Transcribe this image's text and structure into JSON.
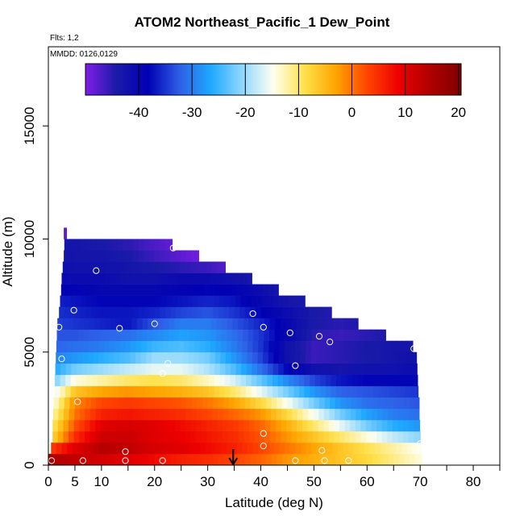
{
  "chart_data": {
    "type": "heatmap",
    "title": "ATOM2 Northeast_Pacific_1 Dew_Point",
    "flights_label": "Flts: 1,2",
    "dates_label": "MMDD: 0126,0129",
    "xlabel": "Latitude (deg N)",
    "ylabel": "Altitude (m)",
    "xlim": [
      0,
      85
    ],
    "ylim": [
      0,
      18500
    ],
    "x_ticks": [
      0,
      5,
      10,
      20,
      30,
      40,
      50,
      60,
      70,
      80
    ],
    "y_ticks": [
      0,
      5000,
      10000,
      15000
    ],
    "grid": false,
    "colorbar": {
      "position": "top",
      "range": [
        -50,
        20.5
      ],
      "ticks": [
        -40,
        -30,
        -20,
        -10,
        0,
        10,
        20
      ],
      "colors": [
        "#7e1ee6",
        "#1a1aa8",
        "#0000b4",
        "#2e5ee6",
        "#1ea8ff",
        "#8fd8ff",
        "#fffff0",
        "#ffe14a",
        "#ffa500",
        "#ff4500",
        "#ee0000",
        "#b00000",
        "#800000"
      ]
    },
    "arrow_latitude": 34.8,
    "altitude_bins": [
      {
        "z0": 0,
        "z1": 500,
        "lat_min": 0,
        "lat_max": 70.3,
        "values": [
          [
            0,
            15
          ],
          [
            5,
            13
          ],
          [
            10,
            11
          ],
          [
            15,
            10
          ],
          [
            20,
            8
          ],
          [
            25,
            6
          ],
          [
            30,
            5
          ],
          [
            35,
            3
          ],
          [
            40,
            1
          ],
          [
            45,
            -2
          ],
          [
            50,
            -4
          ],
          [
            55,
            -6
          ],
          [
            60,
            -8
          ],
          [
            65,
            -11
          ],
          [
            70,
            -14
          ]
        ]
      },
      {
        "z0": 500,
        "z1": 1000,
        "lat_min": 0.5,
        "lat_max": 70.2,
        "values": [
          [
            0,
            3
          ],
          [
            5,
            10
          ],
          [
            10,
            14
          ],
          [
            15,
            13
          ],
          [
            20,
            11
          ],
          [
            25,
            10
          ],
          [
            30,
            8
          ],
          [
            35,
            6
          ],
          [
            40,
            3
          ],
          [
            45,
            0
          ],
          [
            50,
            -3
          ],
          [
            55,
            -6
          ],
          [
            60,
            -9
          ],
          [
            65,
            -12
          ],
          [
            70,
            -15
          ]
        ]
      },
      {
        "z0": 1000,
        "z1": 1500,
        "lat_min": 0.8,
        "lat_max": 70.0,
        "values": [
          [
            0,
            -10
          ],
          [
            5,
            5
          ],
          [
            10,
            12
          ],
          [
            15,
            12
          ],
          [
            20,
            10
          ],
          [
            25,
            9
          ],
          [
            30,
            7
          ],
          [
            35,
            5
          ],
          [
            40,
            2
          ],
          [
            45,
            -2
          ],
          [
            50,
            -6
          ],
          [
            55,
            -10
          ],
          [
            60,
            -14
          ],
          [
            65,
            -18
          ],
          [
            70,
            -21
          ]
        ]
      },
      {
        "z0": 1500,
        "z1": 2000,
        "lat_min": 0.8,
        "lat_max": 69.9,
        "values": [
          [
            0,
            -12
          ],
          [
            5,
            2
          ],
          [
            10,
            10
          ],
          [
            15,
            11
          ],
          [
            20,
            10
          ],
          [
            25,
            8
          ],
          [
            30,
            6
          ],
          [
            35,
            4
          ],
          [
            40,
            1
          ],
          [
            45,
            -4
          ],
          [
            50,
            -10
          ],
          [
            55,
            -16
          ],
          [
            60,
            -22
          ],
          [
            65,
            -26
          ],
          [
            70,
            -28
          ]
        ]
      },
      {
        "z0": 2000,
        "z1": 2500,
        "lat_min": 0.9,
        "lat_max": 69.8,
        "values": [
          [
            0,
            -15
          ],
          [
            5,
            0
          ],
          [
            10,
            6
          ],
          [
            15,
            7
          ],
          [
            20,
            6
          ],
          [
            25,
            5
          ],
          [
            30,
            3
          ],
          [
            35,
            1
          ],
          [
            40,
            -2
          ],
          [
            45,
            -8
          ],
          [
            50,
            -15
          ],
          [
            55,
            -22
          ],
          [
            60,
            -27
          ],
          [
            65,
            -30
          ],
          [
            70,
            -31
          ]
        ]
      },
      {
        "z0": 2500,
        "z1": 3000,
        "lat_min": 1.0,
        "lat_max": 69.8,
        "values": [
          [
            0,
            -18
          ],
          [
            5,
            -1
          ],
          [
            10,
            3
          ],
          [
            15,
            4
          ],
          [
            20,
            3
          ],
          [
            25,
            2
          ],
          [
            30,
            0
          ],
          [
            35,
            -3
          ],
          [
            40,
            -8
          ],
          [
            45,
            -15
          ],
          [
            50,
            -22
          ],
          [
            55,
            -28
          ],
          [
            60,
            -31
          ],
          [
            65,
            -32
          ],
          [
            70,
            -33
          ]
        ]
      },
      {
        "z0": 3000,
        "z1": 3500,
        "lat_min": 1.2,
        "lat_max": 69.6,
        "values": [
          [
            0,
            -20
          ],
          [
            5,
            -6
          ],
          [
            10,
            -3
          ],
          [
            15,
            -2
          ],
          [
            20,
            -3
          ],
          [
            25,
            -4
          ],
          [
            30,
            -6
          ],
          [
            35,
            -10
          ],
          [
            40,
            -16
          ],
          [
            45,
            -22
          ],
          [
            50,
            -28
          ],
          [
            55,
            -32
          ],
          [
            60,
            -33
          ],
          [
            65,
            -34
          ],
          [
            70,
            -35
          ]
        ]
      },
      {
        "z0": 3500,
        "z1": 4000,
        "lat_min": 1.2,
        "lat_max": 69.5,
        "values": [
          [
            0,
            -24
          ],
          [
            5,
            -14
          ],
          [
            10,
            -12
          ],
          [
            15,
            -10
          ],
          [
            20,
            -9
          ],
          [
            25,
            -10
          ],
          [
            30,
            -13
          ],
          [
            35,
            -17
          ],
          [
            40,
            -23
          ],
          [
            45,
            -29
          ],
          [
            50,
            -34
          ],
          [
            55,
            -37
          ],
          [
            60,
            -38
          ],
          [
            65,
            -38
          ],
          [
            70,
            -38
          ]
        ]
      },
      {
        "z0": 4000,
        "z1": 4500,
        "lat_min": 1.3,
        "lat_max": 69.4,
        "values": [
          [
            0,
            -28
          ],
          [
            5,
            -22
          ],
          [
            10,
            -20
          ],
          [
            15,
            -18
          ],
          [
            20,
            -16
          ],
          [
            25,
            -16
          ],
          [
            30,
            -19
          ],
          [
            35,
            -24
          ],
          [
            40,
            -31
          ],
          [
            45,
            -38
          ],
          [
            50,
            -42
          ],
          [
            55,
            -43
          ],
          [
            60,
            -42
          ],
          [
            65,
            -42
          ],
          [
            70,
            -41
          ]
        ]
      },
      {
        "z0": 4500,
        "z1": 5000,
        "lat_min": 1.4,
        "lat_max": 69.3,
        "values": [
          [
            0,
            -30
          ],
          [
            5,
            -28
          ],
          [
            10,
            -26
          ],
          [
            15,
            -24
          ],
          [
            20,
            -20
          ],
          [
            25,
            -20
          ],
          [
            30,
            -22
          ],
          [
            35,
            -28
          ],
          [
            40,
            -34
          ],
          [
            45,
            -42
          ],
          [
            50,
            -46
          ],
          [
            55,
            -45
          ],
          [
            60,
            -44
          ],
          [
            65,
            -43
          ],
          [
            70,
            -42
          ]
        ]
      },
      {
        "z0": 5000,
        "z1": 5500,
        "lat_min": 1.5,
        "lat_max": 68.6,
        "values": [
          [
            0,
            -32
          ],
          [
            5,
            -31
          ],
          [
            10,
            -30
          ],
          [
            15,
            -28
          ],
          [
            20,
            -25
          ],
          [
            25,
            -24
          ],
          [
            30,
            -26
          ],
          [
            35,
            -30
          ],
          [
            40,
            -35
          ],
          [
            45,
            -42
          ],
          [
            50,
            -46
          ],
          [
            55,
            -45
          ],
          [
            60,
            -44
          ],
          [
            65,
            -43
          ],
          [
            70,
            -43
          ]
        ]
      },
      {
        "z0": 5500,
        "z1": 6000,
        "lat_min": 1.6,
        "lat_max": 63.5,
        "values": [
          [
            0,
            -33
          ],
          [
            5,
            -33
          ],
          [
            10,
            -32
          ],
          [
            15,
            -31
          ],
          [
            20,
            -29
          ],
          [
            25,
            -27
          ],
          [
            30,
            -28
          ],
          [
            35,
            -31
          ],
          [
            40,
            -35
          ],
          [
            45,
            -40
          ],
          [
            50,
            -45
          ],
          [
            55,
            -46
          ],
          [
            60,
            -45
          ],
          [
            65,
            -44
          ]
        ]
      },
      {
        "z0": 6000,
        "z1": 6500,
        "lat_min": 1.7,
        "lat_max": 58.3,
        "values": [
          [
            0,
            -34
          ],
          [
            5,
            -35
          ],
          [
            10,
            -36
          ],
          [
            15,
            -37
          ],
          [
            20,
            -33
          ],
          [
            25,
            -30
          ],
          [
            30,
            -30
          ],
          [
            35,
            -33
          ],
          [
            40,
            -36
          ],
          [
            45,
            -40
          ],
          [
            50,
            -44
          ],
          [
            55,
            -45
          ],
          [
            60,
            -44
          ]
        ]
      },
      {
        "z0": 6500,
        "z1": 7000,
        "lat_min": 2.0,
        "lat_max": 53.3,
        "values": [
          [
            0,
            -35
          ],
          [
            5,
            -36
          ],
          [
            10,
            -37
          ],
          [
            15,
            -37
          ],
          [
            20,
            -36
          ],
          [
            25,
            -34
          ],
          [
            30,
            -33
          ],
          [
            35,
            -35
          ],
          [
            40,
            -38
          ],
          [
            45,
            -41
          ],
          [
            50,
            -44
          ],
          [
            55,
            -45
          ]
        ]
      },
      {
        "z0": 7000,
        "z1": 7500,
        "lat_min": 2.2,
        "lat_max": 48.3,
        "values": [
          [
            0,
            -36
          ],
          [
            5,
            -37
          ],
          [
            10,
            -38
          ],
          [
            15,
            -38
          ],
          [
            20,
            -38
          ],
          [
            25,
            -37
          ],
          [
            30,
            -36
          ],
          [
            35,
            -37
          ],
          [
            40,
            -40
          ],
          [
            45,
            -43
          ],
          [
            50,
            -44
          ]
        ]
      },
      {
        "z0": 7500,
        "z1": 8000,
        "lat_min": 2.4,
        "lat_max": 43.3,
        "values": [
          [
            0,
            -38
          ],
          [
            5,
            -39
          ],
          [
            10,
            -40
          ],
          [
            15,
            -40
          ],
          [
            20,
            -40
          ],
          [
            25,
            -39
          ],
          [
            30,
            -38
          ],
          [
            35,
            -39
          ],
          [
            40,
            -41
          ],
          [
            45,
            -44
          ]
        ]
      },
      {
        "z0": 8000,
        "z1": 8500,
        "lat_min": 2.5,
        "lat_max": 38.3,
        "values": [
          [
            0,
            -40
          ],
          [
            5,
            -41
          ],
          [
            10,
            -41
          ],
          [
            15,
            -42
          ],
          [
            20,
            -42
          ],
          [
            25,
            -41
          ],
          [
            30,
            -41
          ],
          [
            35,
            -42
          ],
          [
            40,
            -44
          ]
        ]
      },
      {
        "z0": 8500,
        "z1": 9000,
        "lat_min": 2.7,
        "lat_max": 33.3,
        "values": [
          [
            0,
            -41
          ],
          [
            5,
            -42
          ],
          [
            10,
            -42
          ],
          [
            15,
            -43
          ],
          [
            20,
            -44
          ],
          [
            25,
            -45
          ],
          [
            30,
            -46
          ],
          [
            35,
            -48
          ]
        ]
      },
      {
        "z0": 9000,
        "z1": 9500,
        "lat_min": 2.9,
        "lat_max": 28.3,
        "values": [
          [
            0,
            -42
          ],
          [
            5,
            -43
          ],
          [
            10,
            -43
          ],
          [
            15,
            -44
          ],
          [
            20,
            -46
          ],
          [
            25,
            -48
          ],
          [
            30,
            -50
          ]
        ]
      },
      {
        "z0": 9500,
        "z1": 10000,
        "lat_min": 3.0,
        "lat_max": 23.3,
        "values": [
          [
            0,
            -42
          ],
          [
            5,
            -43
          ],
          [
            10,
            -44
          ],
          [
            15,
            -45
          ],
          [
            20,
            -47
          ],
          [
            25,
            -49
          ]
        ]
      },
      {
        "z0": 10000,
        "z1": 10500,
        "lat_min": 2.9,
        "lat_max": 3.4,
        "values": [
          [
            0,
            -48
          ],
          [
            5,
            -48
          ]
        ]
      }
    ],
    "sample_points": [
      [
        0.6,
        200
      ],
      [
        6.5,
        200
      ],
      [
        14.5,
        200
      ],
      [
        21.5,
        200
      ],
      [
        14.5,
        600
      ],
      [
        40.5,
        850
      ],
      [
        40.5,
        1400
      ],
      [
        51.5,
        650
      ],
      [
        46.5,
        200
      ],
      [
        52,
        200
      ],
      [
        56.5,
        200
      ],
      [
        70,
        950
      ],
      [
        5.5,
        2800
      ],
      [
        2.5,
        4700
      ],
      [
        2,
        6100
      ],
      [
        4.8,
        6850
      ],
      [
        9,
        8600
      ],
      [
        13.4,
        6050
      ],
      [
        20,
        6250
      ],
      [
        23.5,
        9600
      ],
      [
        22.5,
        4500
      ],
      [
        21.5,
        4050
      ],
      [
        38.5,
        6700
      ],
      [
        40.5,
        6100
      ],
      [
        45.5,
        5850
      ],
      [
        51,
        5700
      ],
      [
        53,
        5450
      ],
      [
        46.5,
        4400
      ],
      [
        68.8,
        5150
      ]
    ]
  }
}
